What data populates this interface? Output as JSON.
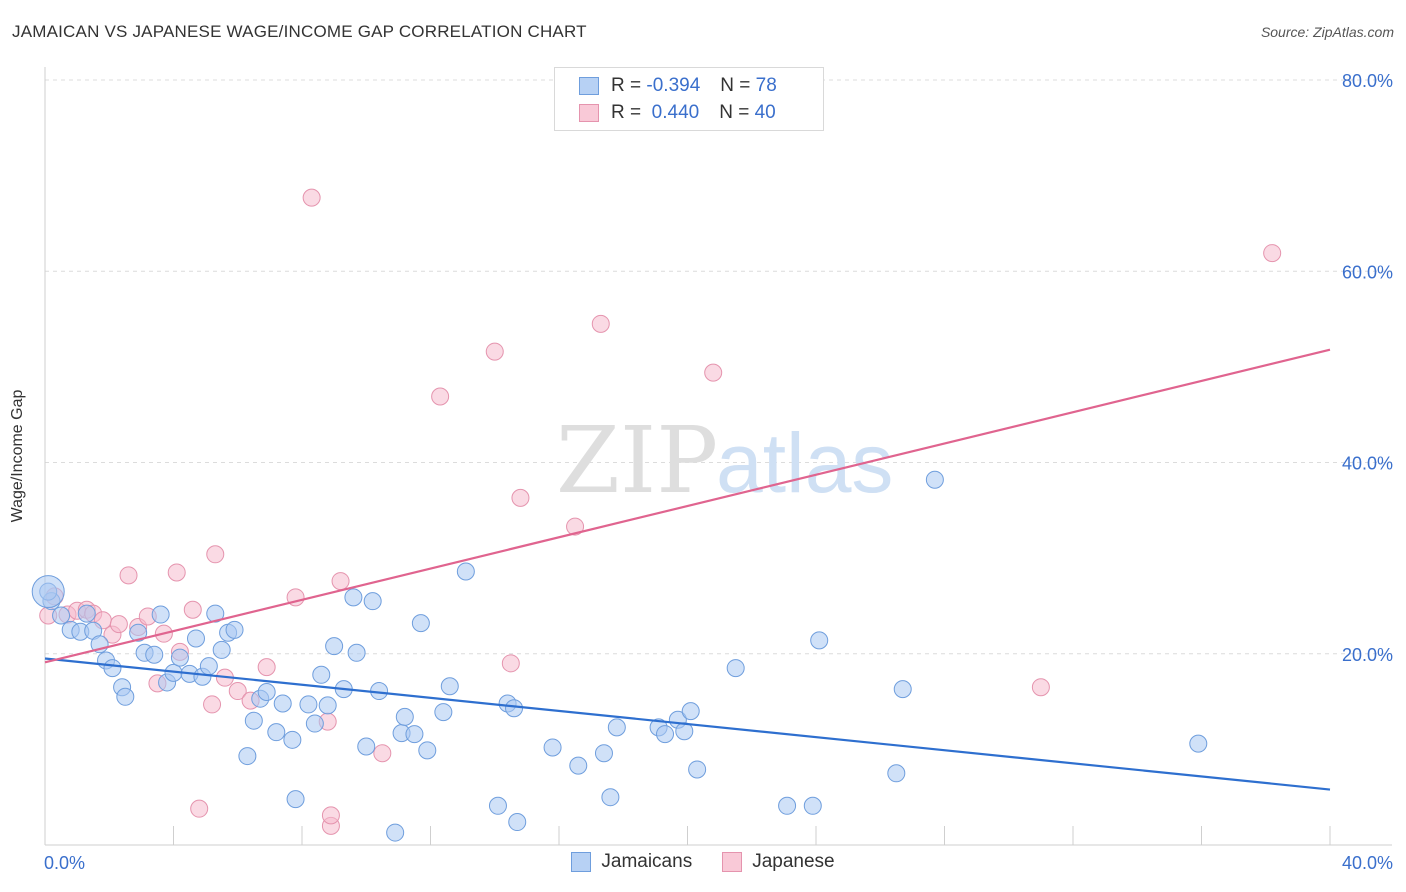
{
  "title": "JAMAICAN VS JAPANESE WAGE/INCOME GAP CORRELATION CHART",
  "source": "Source: ZipAtlas.com",
  "watermark": {
    "zip": "ZIP",
    "atlas": "atlas"
  },
  "legend_top": [
    {
      "r_label": "R =",
      "r_value": "-0.394",
      "n_label": "N =",
      "n_value": "78"
    },
    {
      "r_label": "R =",
      "r_value": " 0.440",
      "n_label": "N =",
      "n_value": "40"
    }
  ],
  "legend_bottom": [
    "Jamaicans",
    "Japanese"
  ],
  "colors": {
    "blue_fill": "#a9c8f2",
    "blue_stroke": "#6f9edd",
    "blue_line": "#2e6fcf",
    "pink_fill": "#f6bccd",
    "pink_stroke": "#e594ae",
    "pink_line": "#e0648f",
    "tick_label": "#3a6fcc"
  },
  "chart_data": {
    "type": "scatter",
    "title": "JAMAICAN VS JAPANESE WAGE/INCOME GAP CORRELATION CHART",
    "xlabel": "",
    "ylabel": "Wage/Income Gap",
    "xlim": [
      0,
      40
    ],
    "ylim": [
      0,
      80
    ],
    "x_tick_labels": [
      "0.0%",
      "40.0%"
    ],
    "y_ticks": [
      20,
      40,
      60,
      80
    ],
    "y_tick_labels": [
      "20.0%",
      "40.0%",
      "60.0%",
      "80.0%"
    ],
    "grid": true,
    "legend_placement": "top-center",
    "series": [
      {
        "name": "Jamaicans",
        "color": "#a9c8f2",
        "trend": {
          "x": [
            0,
            40
          ],
          "y": [
            19.5,
            5.8
          ]
        },
        "points": [
          [
            0.2,
            25.5
          ],
          [
            0.5,
            24
          ],
          [
            0.8,
            22.5
          ],
          [
            1.1,
            22.3
          ],
          [
            1.3,
            24.2
          ],
          [
            1.5,
            22.4
          ],
          [
            1.7,
            21
          ],
          [
            1.9,
            19.3
          ],
          [
            2.1,
            18.5
          ],
          [
            2.4,
            16.5
          ],
          [
            2.5,
            15.5
          ],
          [
            2.9,
            22.2
          ],
          [
            3.1,
            20.1
          ],
          [
            3.4,
            19.9
          ],
          [
            3.6,
            24.1
          ],
          [
            3.8,
            17
          ],
          [
            4,
            18
          ],
          [
            4.2,
            19.6
          ],
          [
            4.5,
            17.9
          ],
          [
            4.7,
            21.6
          ],
          [
            4.9,
            17.6
          ],
          [
            5.1,
            18.7
          ],
          [
            5.3,
            24.2
          ],
          [
            5.5,
            20.4
          ],
          [
            5.7,
            22.2
          ],
          [
            5.9,
            22.5
          ],
          [
            6.3,
            9.3
          ],
          [
            6.5,
            13
          ],
          [
            6.7,
            15.3
          ],
          [
            6.9,
            16
          ],
          [
            7.2,
            11.8
          ],
          [
            7.4,
            14.8
          ],
          [
            7.7,
            11
          ],
          [
            7.8,
            4.8
          ],
          [
            8.2,
            14.7
          ],
          [
            8.4,
            12.7
          ],
          [
            8.6,
            17.8
          ],
          [
            8.8,
            14.6
          ],
          [
            9,
            20.8
          ],
          [
            9.3,
            16.3
          ],
          [
            9.6,
            25.9
          ],
          [
            9.7,
            20.1
          ],
          [
            10,
            10.3
          ],
          [
            10.2,
            25.5
          ],
          [
            10.4,
            16.1
          ],
          [
            10.9,
            1.3
          ],
          [
            11.1,
            11.7
          ],
          [
            11.2,
            13.4
          ],
          [
            11.5,
            11.6
          ],
          [
            11.7,
            23.2
          ],
          [
            11.9,
            9.9
          ],
          [
            12.4,
            13.9
          ],
          [
            12.6,
            16.6
          ],
          [
            13.1,
            28.6
          ],
          [
            14.1,
            4.1
          ],
          [
            14.4,
            14.8
          ],
          [
            14.6,
            14.3
          ],
          [
            14.7,
            2.4
          ],
          [
            15.8,
            10.2
          ],
          [
            16.6,
            8.3
          ],
          [
            17.4,
            9.6
          ],
          [
            17.6,
            5
          ],
          [
            17.8,
            12.3
          ],
          [
            19.1,
            12.3
          ],
          [
            19.3,
            11.6
          ],
          [
            19.7,
            13.1
          ],
          [
            19.9,
            11.9
          ],
          [
            20.1,
            14
          ],
          [
            20.3,
            7.9
          ],
          [
            21.5,
            18.5
          ],
          [
            23.1,
            4.1
          ],
          [
            23.9,
            4.1
          ],
          [
            24.1,
            21.4
          ],
          [
            26.5,
            7.5
          ],
          [
            26.7,
            16.3
          ],
          [
            27.7,
            38.2
          ],
          [
            35.9,
            10.6
          ],
          [
            0.1,
            26.5
          ]
        ]
      },
      {
        "name": "Japanese",
        "color": "#f6bccd",
        "trend": {
          "x": [
            0,
            40
          ],
          "y": [
            19.1,
            51.8
          ]
        },
        "points": [
          [
            0.1,
            24
          ],
          [
            0.3,
            26
          ],
          [
            0.7,
            24.1
          ],
          [
            1.0,
            24.5
          ],
          [
            1.3,
            24.6
          ],
          [
            1.5,
            24.2
          ],
          [
            1.8,
            23.5
          ],
          [
            2.1,
            22
          ],
          [
            2.3,
            23.1
          ],
          [
            2.6,
            28.2
          ],
          [
            2.9,
            22.8
          ],
          [
            3.2,
            23.9
          ],
          [
            3.5,
            16.9
          ],
          [
            3.7,
            22.1
          ],
          [
            4.1,
            28.5
          ],
          [
            4.2,
            20.2
          ],
          [
            4.6,
            24.6
          ],
          [
            5.2,
            14.7
          ],
          [
            5.3,
            30.4
          ],
          [
            5.6,
            17.5
          ],
          [
            6,
            16.1
          ],
          [
            6.4,
            15.1
          ],
          [
            6.9,
            18.6
          ],
          [
            7.8,
            25.9
          ],
          [
            8.3,
            67.7
          ],
          [
            8.8,
            12.9
          ],
          [
            8.9,
            2
          ],
          [
            9.2,
            27.6
          ],
          [
            10.5,
            9.6
          ],
          [
            12.3,
            46.9
          ],
          [
            14.0,
            51.6
          ],
          [
            14.5,
            19
          ],
          [
            14.8,
            36.3
          ],
          [
            16.5,
            33.3
          ],
          [
            17.3,
            54.5
          ],
          [
            20.8,
            49.4
          ],
          [
            31,
            16.5
          ],
          [
            38.2,
            61.9
          ],
          [
            8.9,
            3.1
          ],
          [
            4.8,
            3.8
          ]
        ]
      }
    ]
  }
}
